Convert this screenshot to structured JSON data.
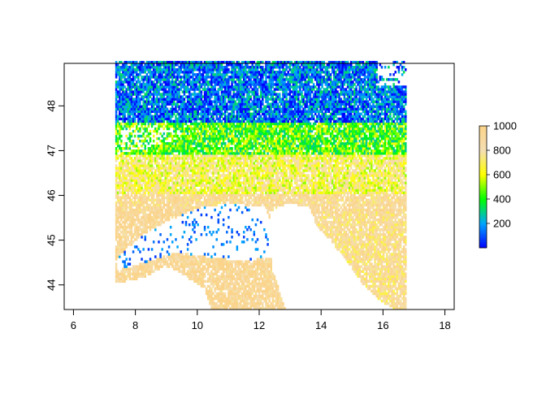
{
  "chart_data": {
    "type": "heatmap",
    "title": "",
    "xlabel": "",
    "ylabel": "",
    "xlim": [
      5.7,
      18.3
    ],
    "ylim": [
      43.45,
      48.95
    ],
    "x_ticks": [
      6,
      8,
      10,
      12,
      14,
      16,
      18
    ],
    "y_ticks": [
      44,
      45,
      46,
      47,
      48
    ],
    "x_tick_labels": [
      "6",
      "8",
      "10",
      "12",
      "14",
      "16",
      "18"
    ],
    "y_tick_labels": [
      "44",
      "45",
      "46",
      "47",
      "48"
    ],
    "raster_extent": {
      "xmin": 7.35,
      "xmax": 16.7,
      "ymin": 43.45,
      "ymax": 48.95
    },
    "color_scale": {
      "min": 0,
      "max": 1000,
      "colors": [
        "#0000ff",
        "#00a5ff",
        "#00ff00",
        "#ffff00",
        "#f5deb3",
        "#fbd48a"
      ],
      "ticks": [
        200,
        400,
        600,
        800,
        1000
      ],
      "tick_labels": [
        "200",
        "400",
        "600",
        "800",
        "1000"
      ]
    },
    "legend_placement": "right",
    "grid": false,
    "regions": {
      "north_lowlands": {
        "lon": [
          7.4,
          16.4
        ],
        "lat": [
          47.6,
          48.95
        ],
        "value": 150
      },
      "northern_prealps": {
        "lon": [
          7.4,
          16.6
        ],
        "lat": [
          46.9,
          47.6
        ],
        "value": 450
      },
      "alps_central": {
        "lon": [
          7.4,
          16.6
        ],
        "lat": [
          46.0,
          46.9
        ],
        "value": 700
      },
      "southern_foothills": {
        "lon": [
          7.4,
          16.6
        ],
        "lat": [
          45.6,
          46.0
        ],
        "value": 900
      },
      "po_valley": {
        "lon": [
          7.4,
          12.5
        ],
        "lat": [
          44.4,
          45.6
        ],
        "value": null
      },
      "adriatic_sea": {
        "lon": [
          12.3,
          15.2
        ],
        "lat": [
          43.45,
          45.5
        ],
        "value": null
      },
      "dinaric_coast": {
        "lon": [
          13.6,
          16.7
        ],
        "lat": [
          43.45,
          45.6
        ],
        "value": 850
      },
      "apennines_liguria": {
        "lon": [
          7.4,
          12.8
        ],
        "lat": [
          43.45,
          44.4
        ],
        "value": 950
      },
      "ligurian_sea": {
        "lon": [
          7.35,
          10.3
        ],
        "lat": [
          43.45,
          44.0
        ],
        "value": null
      }
    }
  }
}
